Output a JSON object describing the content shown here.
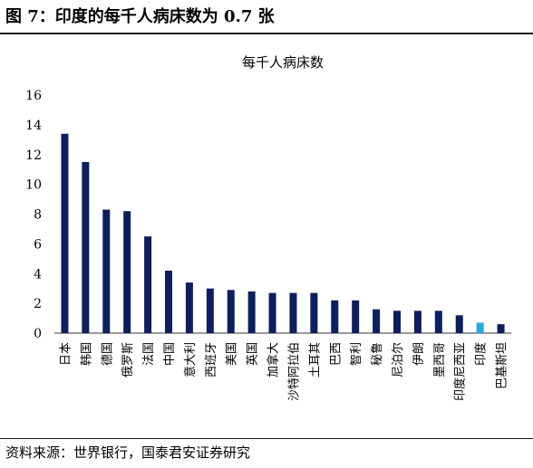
{
  "header": {
    "title": "图 7：印度的每千人病床数为 0.7 张"
  },
  "footer": {
    "source": "资料来源：世界银行，国泰君安证券研究"
  },
  "chart_data": {
    "type": "bar",
    "title": "每千人病床数",
    "xlabel": "",
    "ylabel": "",
    "ylim": [
      0,
      16
    ],
    "yticks": [
      0,
      2,
      4,
      6,
      8,
      10,
      12,
      14,
      16
    ],
    "categories": [
      "日本",
      "韩国",
      "德国",
      "俄罗斯",
      "法国",
      "中国",
      "意大利",
      "西班牙",
      "美国",
      "英国",
      "加拿大",
      "沙特阿拉伯",
      "土耳其",
      "巴西",
      "智利",
      "秘鲁",
      "尼泊尔",
      "伊朗",
      "墨西哥",
      "印度尼西亚",
      "印度",
      "巴基斯坦"
    ],
    "values": [
      13.4,
      11.5,
      8.3,
      8.2,
      6.5,
      4.2,
      3.4,
      3.0,
      2.9,
      2.8,
      2.7,
      2.7,
      2.7,
      2.2,
      2.2,
      1.6,
      1.5,
      1.5,
      1.5,
      1.2,
      0.7,
      0.6
    ],
    "highlight": "印度",
    "colors": {
      "bar": "#0c1f5e",
      "highlight": "#27a6e5"
    },
    "grid": false,
    "legend": "none"
  }
}
